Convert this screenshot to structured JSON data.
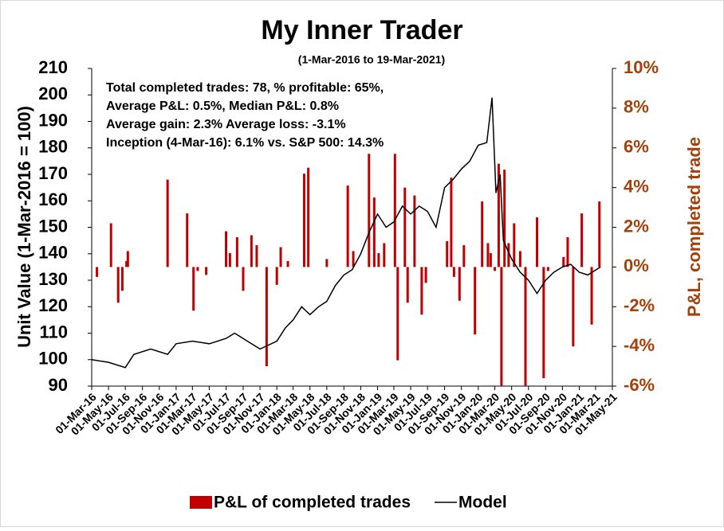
{
  "chart_data": {
    "type": "bar-line",
    "title": "My Inner Trader",
    "subtitle": "(1-Mar-2016 to 19-Mar-2021)",
    "annotations": [
      "Total completed trades: 78, % profitable: 65%,",
      "Average P&L: 0.5%, Median P&L: 0.8%",
      "Average gain: 2.3% Average loss: -3.1%",
      "Inception (4-Mar-16): 6.1% vs. S&P 500: 14.3%"
    ],
    "ylabel": "Unit Value (1-Mar-2016 = 100)",
    "y2label": "P&L, completed trade",
    "legend": "bottom",
    "grid": false,
    "xlim": [
      "2016-03-01",
      "2021-05-01"
    ],
    "xticks": [
      {
        "value": "2016-03-01",
        "label": "01-Mar-16"
      },
      {
        "value": "2016-05-01",
        "label": "01-May-16"
      },
      {
        "value": "2016-07-01",
        "label": "01-Jul-16"
      },
      {
        "value": "2016-09-01",
        "label": "01-Sep-16"
      },
      {
        "value": "2016-11-01",
        "label": "01-Nov-16"
      },
      {
        "value": "2017-01-01",
        "label": "01-Jan-17"
      },
      {
        "value": "2017-03-01",
        "label": "01-Mar-17"
      },
      {
        "value": "2017-05-01",
        "label": "01-May-17"
      },
      {
        "value": "2017-07-01",
        "label": "01-Jul-17"
      },
      {
        "value": "2017-09-01",
        "label": "01-Sep-17"
      },
      {
        "value": "2017-11-01",
        "label": "01-Nov-17"
      },
      {
        "value": "2018-01-01",
        "label": "01-Jan-18"
      },
      {
        "value": "2018-03-01",
        "label": "01-Mar-18"
      },
      {
        "value": "2018-05-01",
        "label": "01-May-18"
      },
      {
        "value": "2018-07-01",
        "label": "01-Jul-18"
      },
      {
        "value": "2018-09-01",
        "label": "01-Sep-18"
      },
      {
        "value": "2018-11-01",
        "label": "01-Nov-18"
      },
      {
        "value": "2019-01-01",
        "label": "01-Jan-19"
      },
      {
        "value": "2019-03-01",
        "label": "01-Mar-19"
      },
      {
        "value": "2019-05-01",
        "label": "01-May-19"
      },
      {
        "value": "2019-07-01",
        "label": "01-Jul-19"
      },
      {
        "value": "2019-09-01",
        "label": "01-Sep-19"
      },
      {
        "value": "2019-11-01",
        "label": "01-Nov-19"
      },
      {
        "value": "2020-01-01",
        "label": "01-Jan-20"
      },
      {
        "value": "2020-03-01",
        "label": "01-Mar-20"
      },
      {
        "value": "2020-05-01",
        "label": "01-May-20"
      },
      {
        "value": "2020-07-01",
        "label": "01-Jul-20"
      },
      {
        "value": "2020-09-01",
        "label": "01-Sep-20"
      },
      {
        "value": "2020-11-01",
        "label": "01-Nov-20"
      },
      {
        "value": "2021-01-01",
        "label": "01-Jan-21"
      },
      {
        "value": "2021-03-01",
        "label": "01-Mar-21"
      },
      {
        "value": "2021-05-01",
        "label": "01-May-21"
      }
    ],
    "ylim": [
      90,
      210
    ],
    "yticks": [
      90,
      100,
      110,
      120,
      130,
      140,
      150,
      160,
      170,
      180,
      190,
      200,
      210
    ],
    "y2lim": [
      -6,
      10
    ],
    "y2ticks": [
      {
        "value": -6,
        "label": "-6%"
      },
      {
        "value": -4,
        "label": "-4%"
      },
      {
        "value": -2,
        "label": "-2%"
      },
      {
        "value": 0,
        "label": "0%"
      },
      {
        "value": 2,
        "label": "2%"
      },
      {
        "value": 4,
        "label": "4%"
      },
      {
        "value": 6,
        "label": "6%"
      },
      {
        "value": 8,
        "label": "8%"
      },
      {
        "value": 10,
        "label": "10%"
      }
    ],
    "series": [
      {
        "name": "P&L of completed trades",
        "type": "bar",
        "axis": "y2",
        "color": "#c00000",
        "x": [
          "2016-03-20",
          "2016-05-10",
          "2016-06-05",
          "2016-06-20",
          "2016-07-05",
          "2016-07-10",
          "2016-12-01",
          "2017-02-10",
          "2017-03-05",
          "2017-03-20",
          "2017-04-20",
          "2017-07-01",
          "2017-07-15",
          "2017-08-10",
          "2017-09-01",
          "2017-10-01",
          "2017-10-20",
          "2017-11-25",
          "2018-01-01",
          "2018-01-15",
          "2018-02-10",
          "2018-04-10",
          "2018-04-25",
          "2018-07-01",
          "2018-09-15",
          "2018-10-05",
          "2018-12-01",
          "2018-12-20",
          "2019-01-05",
          "2019-01-25",
          "2019-03-05",
          "2019-03-15",
          "2019-04-10",
          "2019-04-20",
          "2019-05-15",
          "2019-06-10",
          "2019-06-25",
          "2019-09-10",
          "2019-09-25",
          "2019-10-05",
          "2019-10-25",
          "2019-11-10",
          "2019-12-20",
          "2020-01-15",
          "2020-02-05",
          "2020-02-15",
          "2020-03-01",
          "2020-03-15",
          "2020-03-25",
          "2020-04-05",
          "2020-04-20",
          "2020-05-10",
          "2020-06-01",
          "2020-06-20",
          "2020-08-01",
          "2020-08-25",
          "2020-09-10",
          "2020-11-05",
          "2020-11-20",
          "2020-12-10",
          "2021-01-10",
          "2021-02-15",
          "2021-03-15"
        ],
        "values": [
          -0.5,
          2.2,
          -1.8,
          -1.2,
          0.3,
          0.8,
          4.4,
          2.7,
          -2.2,
          -0.2,
          -0.4,
          1.8,
          0.7,
          1.5,
          -1.2,
          1.6,
          1.1,
          -5,
          -0.9,
          1,
          0.3,
          4.7,
          5,
          0.4,
          4.1,
          0.8,
          5.7,
          3.5,
          0.7,
          1.2,
          5.7,
          -4.7,
          4,
          -1.8,
          3.6,
          -2.4,
          -0.8,
          1.3,
          4.5,
          -0.5,
          -1.7,
          1.1,
          -3.4,
          3.3,
          1.2,
          0.7,
          -0.2,
          5.2,
          -6,
          4.9,
          1.2,
          2.2,
          0.8,
          -6,
          2.5,
          -5.6,
          -0.2,
          0.5,
          1.5,
          -4,
          2.7,
          -2.9,
          3.3
        ]
      },
      {
        "name": "Model",
        "type": "line",
        "axis": "y",
        "color": "#000000",
        "x": [
          "2016-03-01",
          "2016-05-01",
          "2016-07-01",
          "2016-08-01",
          "2016-10-01",
          "2016-12-01",
          "2017-01-01",
          "2017-03-01",
          "2017-05-01",
          "2017-07-01",
          "2017-08-01",
          "2017-10-01",
          "2017-11-01",
          "2018-01-01",
          "2018-02-01",
          "2018-03-01",
          "2018-04-01",
          "2018-05-01",
          "2018-06-01",
          "2018-07-01",
          "2018-08-01",
          "2018-09-01",
          "2018-10-01",
          "2018-11-01",
          "2018-12-01",
          "2019-01-01",
          "2019-02-01",
          "2019-03-01",
          "2019-04-01",
          "2019-05-01",
          "2019-06-01",
          "2019-07-01",
          "2019-08-01",
          "2019-09-01",
          "2019-10-01",
          "2019-11-01",
          "2019-12-01",
          "2020-01-01",
          "2020-02-01",
          "2020-02-20",
          "2020-03-05",
          "2020-03-20",
          "2020-04-01",
          "2020-05-01",
          "2020-06-01",
          "2020-07-01",
          "2020-08-01",
          "2020-09-01",
          "2020-10-01",
          "2020-11-01",
          "2020-12-01",
          "2021-01-01",
          "2021-02-01",
          "2021-03-19"
        ],
        "values": [
          100,
          99,
          97,
          102,
          104,
          102,
          106,
          107,
          106,
          108,
          110,
          106,
          104,
          107,
          112,
          115,
          120,
          117,
          120,
          122,
          128,
          132,
          134,
          140,
          148,
          155,
          150,
          152,
          158,
          155,
          158,
          156,
          150,
          165,
          168,
          172,
          175,
          181,
          182,
          199,
          163,
          170,
          145,
          138,
          133,
          130,
          125,
          130,
          133,
          135,
          136,
          133,
          132,
          135
        ]
      }
    ]
  }
}
